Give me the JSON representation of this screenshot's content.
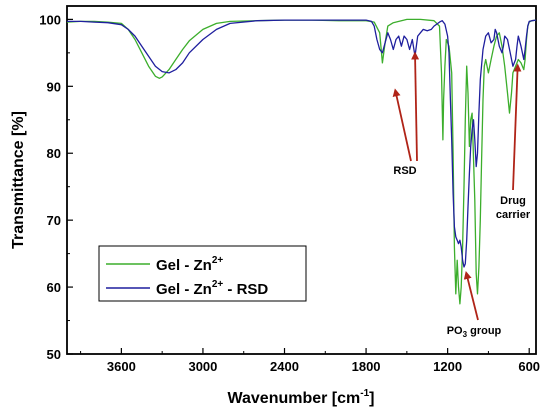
{
  "chart_data": {
    "type": "line",
    "xlabel": "Wavenumber [cm",
    "xlabel_sup": "-1",
    "xlabel_end": "]",
    "ylabel": "Transmittance [%]",
    "xlim": [
      4000,
      550
    ],
    "ylim": [
      50,
      102
    ],
    "x_reversed": true,
    "xticks": [
      3600,
      3000,
      2400,
      1800,
      1200,
      600
    ],
    "yticks": [
      50,
      60,
      70,
      80,
      90,
      100
    ],
    "grid": false,
    "legend_position": "lower-left",
    "series": [
      {
        "name": "Gel - Zn",
        "name_sup": "2+",
        "name_end": "",
        "color": "#3cae2c",
        "points": [
          [
            4000,
            99.6
          ],
          [
            3900,
            99.7
          ],
          [
            3800,
            99.7
          ],
          [
            3700,
            99.6
          ],
          [
            3600,
            99.4
          ],
          [
            3550,
            98.5
          ],
          [
            3500,
            97
          ],
          [
            3450,
            95
          ],
          [
            3400,
            93
          ],
          [
            3350,
            91.5
          ],
          [
            3320,
            91.2
          ],
          [
            3300,
            91.4
          ],
          [
            3250,
            92.5
          ],
          [
            3200,
            94
          ],
          [
            3150,
            95.5
          ],
          [
            3100,
            96.8
          ],
          [
            3000,
            98.5
          ],
          [
            2900,
            99.4
          ],
          [
            2800,
            99.7
          ],
          [
            2600,
            99.8
          ],
          [
            2400,
            99.9
          ],
          [
            2200,
            99.9
          ],
          [
            2000,
            99.8
          ],
          [
            1800,
            99.8
          ],
          [
            1740,
            99.6
          ],
          [
            1700,
            98
          ],
          [
            1680,
            93.5
          ],
          [
            1660,
            96.5
          ],
          [
            1640,
            99
          ],
          [
            1600,
            99.5
          ],
          [
            1500,
            100
          ],
          [
            1400,
            100
          ],
          [
            1300,
            99.8
          ],
          [
            1260,
            99
          ],
          [
            1245,
            92
          ],
          [
            1235,
            82
          ],
          [
            1230,
            88
          ],
          [
            1220,
            93
          ],
          [
            1210,
            97
          ],
          [
            1190,
            96
          ],
          [
            1170,
            92
          ],
          [
            1160,
            80
          ],
          [
            1150,
            66
          ],
          [
            1140,
            59
          ],
          [
            1130,
            64
          ],
          [
            1120,
            60
          ],
          [
            1110,
            57.5
          ],
          [
            1100,
            60
          ],
          [
            1090,
            66
          ],
          [
            1080,
            75
          ],
          [
            1070,
            85
          ],
          [
            1060,
            93
          ],
          [
            1050,
            89
          ],
          [
            1040,
            81
          ],
          [
            1030,
            85
          ],
          [
            1020,
            86
          ],
          [
            1000,
            73
          ],
          [
            990,
            62
          ],
          [
            980,
            59
          ],
          [
            970,
            63
          ],
          [
            960,
            70
          ],
          [
            950,
            79
          ],
          [
            940,
            88
          ],
          [
            930,
            93
          ],
          [
            920,
            94
          ],
          [
            900,
            92
          ],
          [
            880,
            94
          ],
          [
            860,
            96
          ],
          [
            840,
            97.5
          ],
          [
            820,
            98
          ],
          [
            800,
            96
          ],
          [
            780,
            93
          ],
          [
            760,
            89
          ],
          [
            745,
            86
          ],
          [
            730,
            89
          ],
          [
            720,
            92
          ],
          [
            700,
            93
          ],
          [
            680,
            94
          ],
          [
            660,
            93.5
          ],
          [
            640,
            92.5
          ],
          [
            630,
            94
          ],
          [
            620,
            97
          ],
          [
            610,
            99
          ],
          [
            600,
            99.6
          ],
          [
            580,
            99.8
          ],
          [
            550,
            99.9
          ]
        ]
      },
      {
        "name": "Gel - Zn",
        "name_sup": "2+",
        "name_end": " - RSD",
        "color": "#1f1f9e",
        "points": [
          [
            4000,
            99.7
          ],
          [
            3900,
            99.7
          ],
          [
            3800,
            99.6
          ],
          [
            3700,
            99.5
          ],
          [
            3600,
            99.2
          ],
          [
            3550,
            98.5
          ],
          [
            3500,
            97.5
          ],
          [
            3450,
            96
          ],
          [
            3400,
            94.5
          ],
          [
            3350,
            93
          ],
          [
            3300,
            92.2
          ],
          [
            3250,
            92
          ],
          [
            3200,
            92.5
          ],
          [
            3150,
            93.5
          ],
          [
            3100,
            95
          ],
          [
            3000,
            97
          ],
          [
            2900,
            98.5
          ],
          [
            2800,
            99.4
          ],
          [
            2600,
            99.8
          ],
          [
            2400,
            99.9
          ],
          [
            2200,
            99.9
          ],
          [
            2000,
            99.9
          ],
          [
            1800,
            99.9
          ],
          [
            1760,
            99.7
          ],
          [
            1740,
            99
          ],
          [
            1720,
            97
          ],
          [
            1700,
            95.5
          ],
          [
            1680,
            95
          ],
          [
            1660,
            96.5
          ],
          [
            1640,
            98
          ],
          [
            1620,
            97
          ],
          [
            1600,
            95.5
          ],
          [
            1580,
            97
          ],
          [
            1560,
            97.5
          ],
          [
            1540,
            96
          ],
          [
            1520,
            97.5
          ],
          [
            1500,
            97
          ],
          [
            1480,
            95.5
          ],
          [
            1460,
            97
          ],
          [
            1440,
            94.5
          ],
          [
            1420,
            97.5
          ],
          [
            1400,
            98
          ],
          [
            1380,
            98.5
          ],
          [
            1350,
            98.3
          ],
          [
            1320,
            98.5
          ],
          [
            1300,
            99
          ],
          [
            1280,
            99.3
          ],
          [
            1260,
            99.6
          ],
          [
            1240,
            99.8
          ],
          [
            1220,
            99.3
          ],
          [
            1200,
            97.5
          ],
          [
            1190,
            95
          ],
          [
            1180,
            88
          ],
          [
            1170,
            82
          ],
          [
            1160,
            74
          ],
          [
            1150,
            69
          ],
          [
            1140,
            67.5
          ],
          [
            1130,
            67
          ],
          [
            1120,
            66.5
          ],
          [
            1110,
            67
          ],
          [
            1100,
            66
          ],
          [
            1090,
            64
          ],
          [
            1080,
            63
          ],
          [
            1070,
            63.5
          ],
          [
            1060,
            67
          ],
          [
            1050,
            72
          ],
          [
            1040,
            77
          ],
          [
            1030,
            81
          ],
          [
            1020,
            83.5
          ],
          [
            1010,
            85
          ],
          [
            1000,
            82
          ],
          [
            990,
            78
          ],
          [
            980,
            80
          ],
          [
            970,
            86
          ],
          [
            960,
            91
          ],
          [
            940,
            95.5
          ],
          [
            920,
            97.5
          ],
          [
            900,
            98
          ],
          [
            880,
            96.5
          ],
          [
            860,
            97
          ],
          [
            850,
            98.5
          ],
          [
            840,
            98
          ],
          [
            820,
            96
          ],
          [
            800,
            95
          ],
          [
            790,
            96
          ],
          [
            780,
            97.5
          ],
          [
            760,
            97
          ],
          [
            740,
            95
          ],
          [
            720,
            93
          ],
          [
            700,
            94
          ],
          [
            690,
            96
          ],
          [
            680,
            97.5
          ],
          [
            660,
            96
          ],
          [
            640,
            94
          ],
          [
            630,
            95.5
          ],
          [
            620,
            97.5
          ],
          [
            610,
            99
          ],
          [
            600,
            99.7
          ],
          [
            580,
            99.8
          ],
          [
            550,
            99.9
          ]
        ]
      }
    ],
    "annotations": [
      {
        "id": "rsd",
        "lines": [
          "RSD"
        ],
        "arrows": [
          [
            1585,
            90
          ],
          [
            1440,
            95.5
          ]
        ]
      },
      {
        "id": "po3",
        "lines": [
          "PO",
          "3",
          " group"
        ],
        "arrows": [
          [
            1085,
            63
          ]
        ]
      },
      {
        "id": "drug-carrier",
        "lines": [
          "Drug",
          "carrier"
        ],
        "arrows": [
          [
            670,
            94
          ]
        ]
      }
    ],
    "annotation_color": "#b02418"
  }
}
